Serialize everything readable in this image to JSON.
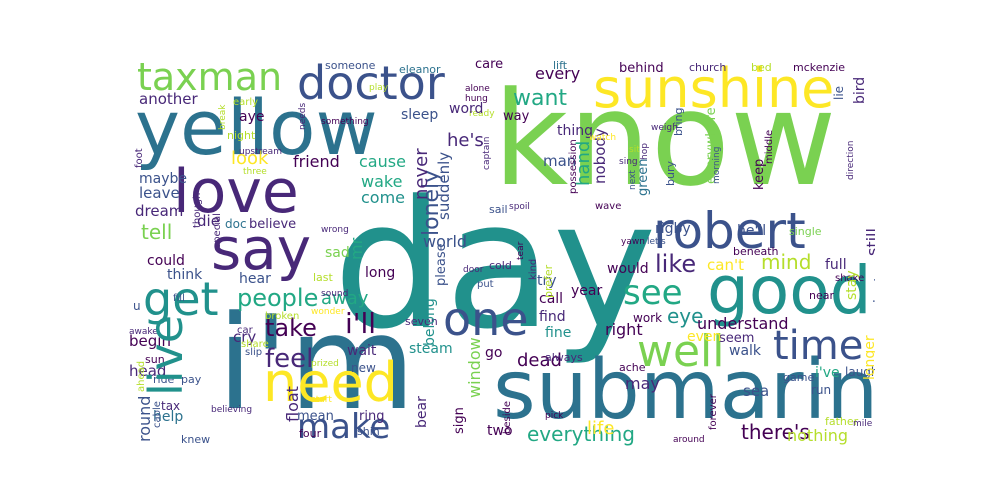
{
  "words": [
    {
      "text": "day",
      "color": "#21918c"
    },
    {
      "text": "know",
      "color": "#7ad151"
    },
    {
      "text": "i'm",
      "color": "#2c728e"
    },
    {
      "text": "submarine",
      "color": "#2c728e"
    },
    {
      "text": "yellow",
      "color": "#2c728e"
    },
    {
      "text": "sunshine",
      "color": "#fde725"
    },
    {
      "text": "good",
      "color": "#21918c"
    },
    {
      "text": "love",
      "color": "#482878"
    },
    {
      "text": "say",
      "color": "#482878"
    },
    {
      "text": "doctor",
      "color": "#3b528b"
    },
    {
      "text": "taxman",
      "color": "#7ad151"
    },
    {
      "text": "need",
      "color": "#fde725"
    },
    {
      "text": "robert",
      "color": "#3b528b"
    },
    {
      "text": "well",
      "color": "#7ad151"
    },
    {
      "text": "one",
      "color": "#3b528b"
    },
    {
      "text": "live",
      "color": "#21918c"
    },
    {
      "text": "get",
      "color": "#21918c"
    },
    {
      "text": "time",
      "color": "#3b528b"
    },
    {
      "text": "see",
      "color": "#22a884"
    },
    {
      "text": "make",
      "color": "#3b528b"
    },
    {
      "text": "people",
      "color": "#22a884"
    },
    {
      "text": "feel",
      "color": "#482878"
    },
    {
      "text": "take",
      "color": "#440154"
    },
    {
      "text": "i'll",
      "color": "#440154"
    },
    {
      "text": "lonely",
      "color": "#3b528b"
    },
    {
      "text": "want",
      "color": "#22a884"
    },
    {
      "text": "every",
      "color": "#440154"
    },
    {
      "text": "another",
      "color": "#482878"
    },
    {
      "text": "aye",
      "color": "#440154"
    },
    {
      "text": "look",
      "color": "#fde725"
    },
    {
      "text": "friend",
      "color": "#440154"
    },
    {
      "text": "maybe",
      "color": "#3b528b"
    },
    {
      "text": "leave",
      "color": "#3b528b"
    },
    {
      "text": "dream",
      "color": "#482878"
    },
    {
      "text": "tell",
      "color": "#7ad151"
    },
    {
      "text": "die",
      "color": "#482878"
    },
    {
      "text": "doc",
      "color": "#2c728e"
    },
    {
      "text": "believe",
      "color": "#482878"
    },
    {
      "text": "could",
      "color": "#440154"
    },
    {
      "text": "think",
      "color": "#3b528b"
    },
    {
      "text": "hear",
      "color": "#3b528b"
    },
    {
      "text": "cause",
      "color": "#22a884"
    },
    {
      "text": "wake",
      "color": "#22a884"
    },
    {
      "text": "come",
      "color": "#21918c"
    },
    {
      "text": "never",
      "color": "#482878"
    },
    {
      "text": "suddenly",
      "color": "#3b528b"
    },
    {
      "text": "he's",
      "color": "#482878"
    },
    {
      "text": "word",
      "color": "#482878"
    },
    {
      "text": "sleep",
      "color": "#3b528b"
    },
    {
      "text": "care",
      "color": "#440154"
    },
    {
      "text": "someone",
      "color": "#3b528b"
    },
    {
      "text": "lift",
      "color": "#2c728e"
    },
    {
      "text": "behind",
      "color": "#440154"
    },
    {
      "text": "church",
      "color": "#482878"
    },
    {
      "text": "bed",
      "color": "#b5de2b"
    },
    {
      "text": "mckenzie",
      "color": "#440154"
    },
    {
      "text": "bird",
      "color": "#482878"
    },
    {
      "text": "lie",
      "color": "#3b528b"
    },
    {
      "text": "something",
      "color": "#440154"
    },
    {
      "text": "eleanor",
      "color": "#2c728e"
    },
    {
      "text": "play",
      "color": "#b5de2b"
    },
    {
      "text": "man",
      "color": "#3b528b"
    },
    {
      "text": "thing",
      "color": "#482878"
    },
    {
      "text": "hand",
      "color": "#22a884"
    },
    {
      "text": "nobody",
      "color": "#482878"
    },
    {
      "text": "green",
      "color": "#2c728e"
    },
    {
      "text": "everywhere",
      "color": "#7ad151"
    },
    {
      "text": "still",
      "color": "#482878"
    },
    {
      "text": "keep",
      "color": "#440154"
    },
    {
      "text": "he'll",
      "color": "#3b528b"
    },
    {
      "text": "rigby",
      "color": "#3b528b"
    },
    {
      "text": "beneath",
      "color": "#440154"
    },
    {
      "text": "single",
      "color": "#7ad151"
    },
    {
      "text": "like",
      "color": "#482878"
    },
    {
      "text": "can't",
      "color": "#fde725"
    },
    {
      "text": "mind",
      "color": "#b5de2b"
    },
    {
      "text": "full",
      "color": "#482878"
    },
    {
      "text": "world",
      "color": "#3b528b"
    },
    {
      "text": "stay",
      "color": "#b5de2b"
    },
    {
      "text": "sad",
      "color": "#7ad151"
    },
    {
      "text": "long",
      "color": "#440154"
    },
    {
      "text": "last",
      "color": "#b5de2b"
    },
    {
      "text": "away",
      "color": "#22a884"
    },
    {
      "text": "mr",
      "color": "#22a884"
    },
    {
      "text": "belong",
      "color": "#21918c"
    },
    {
      "text": "please",
      "color": "#3b528b"
    },
    {
      "text": "try",
      "color": "#3b528b"
    },
    {
      "text": "call",
      "color": "#440154"
    },
    {
      "text": "find",
      "color": "#482878"
    },
    {
      "text": "fine",
      "color": "#21918c"
    },
    {
      "text": "eye",
      "color": "#21918c"
    },
    {
      "text": "right",
      "color": "#440154"
    },
    {
      "text": "understand",
      "color": "#440154"
    },
    {
      "text": "seem",
      "color": "#482878"
    },
    {
      "text": "walk",
      "color": "#3b528b"
    },
    {
      "text": "even",
      "color": "#fde725"
    },
    {
      "text": "work",
      "color": "#440154"
    },
    {
      "text": "begin",
      "color": "#440154"
    },
    {
      "text": "cry",
      "color": "#482878"
    },
    {
      "text": "head",
      "color": "#482878"
    },
    {
      "text": "wait",
      "color": "#482878"
    },
    {
      "text": "steam",
      "color": "#21918c"
    },
    {
      "text": "dead",
      "color": "#440154"
    },
    {
      "text": "go",
      "color": "#440154"
    },
    {
      "text": "new",
      "color": "#3b528b"
    },
    {
      "text": "float",
      "color": "#482878"
    },
    {
      "text": "window",
      "color": "#7ad151"
    },
    {
      "text": "round",
      "color": "#3b528b"
    },
    {
      "text": "help",
      "color": "#2c728e"
    },
    {
      "text": "tax",
      "color": "#482878"
    },
    {
      "text": "mean",
      "color": "#3b528b"
    },
    {
      "text": "ring",
      "color": "#482878"
    },
    {
      "text": "bear",
      "color": "#482878"
    },
    {
      "text": "may",
      "color": "#482878"
    },
    {
      "text": "sea",
      "color": "#3b528b"
    },
    {
      "text": "i've",
      "color": "#22a884"
    },
    {
      "text": "everything",
      "color": "#22a884"
    },
    {
      "text": "life",
      "color": "#fde725"
    },
    {
      "text": "there's",
      "color": "#440154"
    },
    {
      "text": "nothing",
      "color": "#b5de2b"
    },
    {
      "text": "sign",
      "color": "#440154"
    },
    {
      "text": "two",
      "color": "#440154"
    },
    {
      "text": "year",
      "color": "#440154"
    },
    {
      "text": "would",
      "color": "#440154"
    },
    {
      "text": "father",
      "color": "#b5de2b"
    },
    {
      "text": "longer",
      "color": "#fde725"
    },
    {
      "text": "nineteen",
      "color": "#3b528b"
    },
    {
      "text": "laugh",
      "color": "#3b528b"
    },
    {
      "text": "run",
      "color": "#3b528b"
    },
    {
      "text": "game",
      "color": "#3b528b"
    },
    {
      "text": "mile",
      "color": "#482878"
    },
    {
      "text": "shake",
      "color": "#440154"
    },
    {
      "text": "near",
      "color": "#440154"
    },
    {
      "text": "ache",
      "color": "#440154"
    },
    {
      "text": "always",
      "color": "#482878"
    },
    {
      "text": "forever",
      "color": "#440154"
    },
    {
      "text": "around",
      "color": "#440154"
    },
    {
      "text": "pick",
      "color": "#440154"
    },
    {
      "text": "beside",
      "color": "#440154"
    },
    {
      "text": "four",
      "color": "#440154"
    },
    {
      "text": "shin",
      "color": "#3b528b"
    },
    {
      "text": "knew",
      "color": "#3b528b"
    },
    {
      "text": "pay",
      "color": "#3b528b"
    },
    {
      "text": "ride",
      "color": "#3b528b"
    },
    {
      "text": "sun",
      "color": "#440154"
    },
    {
      "text": "cable",
      "color": "#3b528b"
    },
    {
      "text": "share",
      "color": "#b5de2b"
    },
    {
      "text": "slip",
      "color": "#3b528b"
    },
    {
      "text": "car",
      "color": "#482878"
    },
    {
      "text": "broken",
      "color": "#b5de2b"
    },
    {
      "text": "awake",
      "color": "#482878"
    },
    {
      "text": "prized",
      "color": "#b5de2b"
    },
    {
      "text": "start",
      "color": "#fde725"
    },
    {
      "text": "believing",
      "color": "#482878"
    },
    {
      "text": "ahead",
      "color": "#b5de2b"
    },
    {
      "text": "u",
      "color": "#3b528b"
    },
    {
      "text": "fill",
      "color": "#3b528b"
    },
    {
      "text": "sound",
      "color": "#482878"
    },
    {
      "text": "wonder",
      "color": "#fde725"
    },
    {
      "text": "wrong",
      "color": "#482878"
    },
    {
      "text": "special",
      "color": "#482878"
    },
    {
      "text": "though",
      "color": "#482878"
    },
    {
      "text": "foot",
      "color": "#482878"
    },
    {
      "text": "three",
      "color": "#b5de2b"
    },
    {
      "text": "night",
      "color": "#b5de2b"
    },
    {
      "text": "early",
      "color": "#b5de2b"
    },
    {
      "text": "break",
      "color": "#b5de2b"
    },
    {
      "text": "upstream",
      "color": "#482878"
    },
    {
      "text": "needs",
      "color": "#482878"
    },
    {
      "text": "hung",
      "color": "#440154"
    },
    {
      "text": "alone",
      "color": "#440154"
    },
    {
      "text": "ready",
      "color": "#b5de2b"
    },
    {
      "text": "way",
      "color": "#440154"
    },
    {
      "text": "captain",
      "color": "#482878"
    },
    {
      "text": "possession",
      "color": "#440154"
    },
    {
      "text": "bring",
      "color": "#3b528b"
    },
    {
      "text": "morning",
      "color": "#3b528b"
    },
    {
      "text": "middle",
      "color": "#440154"
    },
    {
      "text": "direction",
      "color": "#482878"
    },
    {
      "text": "weigh",
      "color": "#482878"
    },
    {
      "text": "watch",
      "color": "#fde725"
    },
    {
      "text": "hop",
      "color": "#482878"
    },
    {
      "text": "sit",
      "color": "#b5de2b"
    },
    {
      "text": "bury",
      "color": "#3b528b"
    },
    {
      "text": "sing",
      "color": "#482878"
    },
    {
      "text": "seven",
      "color": "#482878"
    },
    {
      "text": "cold",
      "color": "#482878"
    },
    {
      "text": "sail",
      "color": "#3b528b"
    },
    {
      "text": "tear",
      "color": "#440154"
    },
    {
      "text": "spoil",
      "color": "#482878"
    },
    {
      "text": "wave",
      "color": "#440154"
    },
    {
      "text": "next",
      "color": "#3b528b"
    },
    {
      "text": "kind",
      "color": "#482878"
    },
    {
      "text": "prefer",
      "color": "#b5de2b"
    },
    {
      "text": "yawn",
      "color": "#440154"
    },
    {
      "text": "let's",
      "color": "#3b528b"
    },
    {
      "text": "door",
      "color": "#482878"
    },
    {
      "text": "put",
      "color": "#3b528b"
    },
    {
      "text": "road",
      "color": "#440154"
    }
  ]
}
